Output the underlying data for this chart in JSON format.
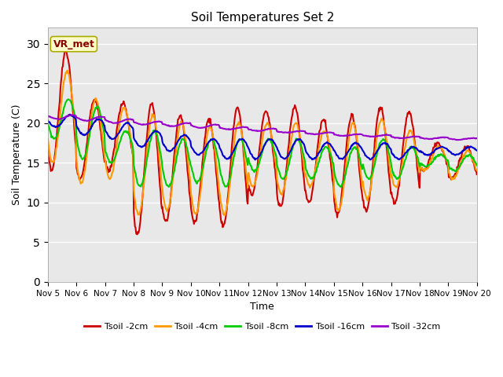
{
  "title": "Soil Temperatures Set 2",
  "xlabel": "Time",
  "ylabel": "Soil Temperature (C)",
  "ylim": [
    0,
    32
  ],
  "yticks": [
    0,
    5,
    10,
    15,
    20,
    25,
    30
  ],
  "x_labels": [
    "Nov 5",
    "Nov 6",
    "Nov 7",
    "Nov 8",
    "Nov 9",
    "Nov 10",
    "Nov 11",
    "Nov 12",
    "Nov 13",
    "Nov 14",
    "Nov 15",
    "Nov 16",
    "Nov 17",
    "Nov 18",
    "Nov 19",
    "Nov 20"
  ],
  "annotation_text": "VR_met",
  "background_color": "#e8e8e8",
  "series_colors": [
    "#cc0000",
    "#ff9900",
    "#00cc00",
    "#0000cc",
    "#9900cc"
  ],
  "series_labels": [
    "Tsoil -2cm",
    "Tsoil -4cm",
    "Tsoil -8cm",
    "Tsoil -16cm",
    "Tsoil -32cm"
  ],
  "line_width": 1.5,
  "figsize": [
    6.4,
    4.8
  ],
  "dpi": 100
}
